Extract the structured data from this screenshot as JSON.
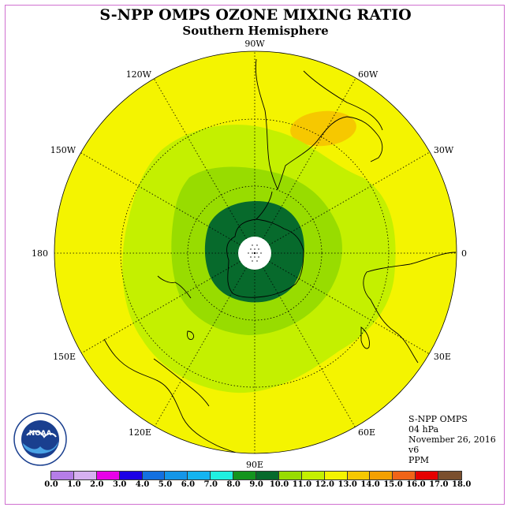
{
  "title": "S-NPP OMPS OZONE MIXING RATIO",
  "subtitle": "Southern Hemisphere",
  "longitude_labels": [
    {
      "label": "0",
      "lon": 0
    },
    {
      "label": "30W",
      "lon": -30
    },
    {
      "label": "60W",
      "lon": -60
    },
    {
      "label": "90W",
      "lon": -90
    },
    {
      "label": "120W",
      "lon": -120
    },
    {
      "label": "150W",
      "lon": -150
    },
    {
      "label": "180",
      "lon": 180
    },
    {
      "label": "150E",
      "lon": 150
    },
    {
      "label": "120E",
      "lon": 120
    },
    {
      "label": "90E",
      "lon": 90
    },
    {
      "label": "60E",
      "lon": 60
    },
    {
      "label": "30E",
      "lon": 30
    }
  ],
  "info": {
    "instrument": "S-NPP OMPS",
    "level": "04 hPa",
    "date": "November 26, 2016",
    "version": "v6",
    "units": "PPM"
  },
  "colorbar": {
    "ticks": [
      "0.0",
      "1.0",
      "2.0",
      "3.0",
      "4.0",
      "5.0",
      "6.0",
      "7.0",
      "8.0",
      "9.0",
      "10.0",
      "11.0",
      "12.0",
      "13.0",
      "14.0",
      "15.0",
      "16.0",
      "17.0",
      "18.0"
    ],
    "colors": [
      "#b57de8",
      "#d6b0f0",
      "#e800e8",
      "#1c00e6",
      "#1470e0",
      "#1496e8",
      "#14b4f0",
      "#20f0e0",
      "#14941e",
      "#076a2c",
      "#98dc00",
      "#c4f000",
      "#f4f400",
      "#f6c800",
      "#f4a000",
      "#f06418",
      "#e60000",
      "#7a4f2e"
    ]
  },
  "map": {
    "background_level": 13.0,
    "ring_levels": [
      12.0,
      11.0,
      10.0
    ],
    "pole_level": 0.0,
    "high_level": 14.0,
    "grid": true,
    "land_outline_color": "#000000",
    "lat_circles": [
      -30,
      -60
    ]
  },
  "logo": {
    "text": "NOAA",
    "ring_text": "NATIONAL OCEANIC AND ATMOSPHERIC ADMINISTRATION"
  }
}
